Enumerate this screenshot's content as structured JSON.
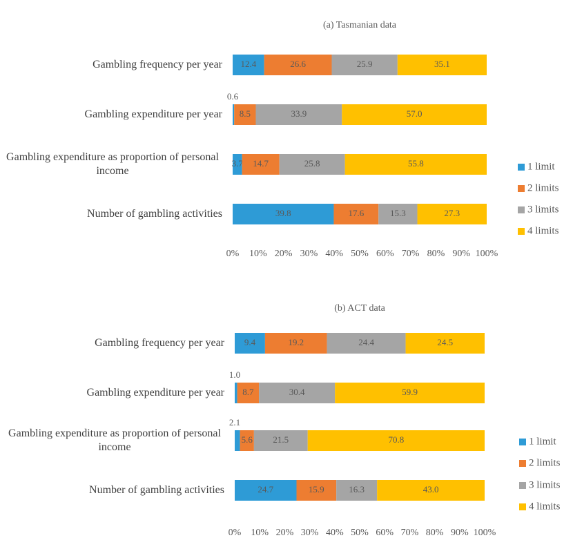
{
  "chart_data": [
    {
      "type": "percent_stacked_bar",
      "title": "(a) Tasmanian data",
      "categories": [
        "Gambling frequency per year",
        "Gambling expenditure per year",
        "Gambling expenditure as proportion of personal income",
        "Number of gambling activities"
      ],
      "series": [
        {
          "name": "1 limit",
          "color": "#2e9bd6",
          "values": [
            12.4,
            0.6,
            3.7,
            39.8
          ],
          "value_labels": [
            "12.4",
            "0.6",
            "3.7",
            "39.8"
          ]
        },
        {
          "name": "2 limits",
          "color": "#ed7d31",
          "values": [
            26.6,
            8.5,
            14.7,
            17.6
          ],
          "value_labels": [
            "26.6",
            "8.5",
            "14.7",
            "17.6"
          ]
        },
        {
          "name": "3 limits",
          "color": "#a5a5a5",
          "values": [
            25.9,
            33.9,
            25.8,
            15.3
          ],
          "value_labels": [
            "25.9",
            "33.9",
            "25.8",
            "15.3"
          ]
        },
        {
          "name": "4 limits",
          "color": "#ffc000",
          "values": [
            35.1,
            57.0,
            55.8,
            27.3
          ],
          "value_labels": [
            "35.1",
            "57.0",
            "55.8",
            "27.3"
          ]
        }
      ],
      "xlim": [
        0,
        100
      ],
      "xticks": [
        {
          "value": 0,
          "label": "0%"
        },
        {
          "value": 10,
          "label": "10%"
        },
        {
          "value": 20,
          "label": "20%"
        },
        {
          "value": 30,
          "label": "30%"
        },
        {
          "value": 40,
          "label": "40%"
        },
        {
          "value": 50,
          "label": "50%"
        },
        {
          "value": 60,
          "label": "60%"
        },
        {
          "value": 70,
          "label": "70%"
        },
        {
          "value": 80,
          "label": "80%"
        },
        {
          "value": 90,
          "label": "90%"
        },
        {
          "value": 100,
          "label": "100%"
        }
      ],
      "legend": "right"
    },
    {
      "type": "percent_stacked_bar",
      "title": "(b) ACT data",
      "categories": [
        "Gambling frequency per year",
        "Gambling expenditure per year",
        "Gambling expenditure as proportion of personal income",
        "Number of gambling activities"
      ],
      "series": [
        {
          "name": "1 limit",
          "color": "#2e9bd6",
          "values": [
            9.4,
            1.0,
            2.1,
            24.7
          ],
          "value_labels": [
            "9.4",
            "1.0",
            "2.1",
            "24.7"
          ]
        },
        {
          "name": "2 limits",
          "color": "#ed7d31",
          "values": [
            19.2,
            8.7,
            5.6,
            15.9
          ],
          "value_labels": [
            "19.2",
            "8.7",
            "5.6",
            "15.9"
          ]
        },
        {
          "name": "3 limits",
          "color": "#a5a5a5",
          "values": [
            24.4,
            30.4,
            21.5,
            16.3
          ],
          "value_labels": [
            "24.4",
            "30.4",
            "21.5",
            "16.3"
          ]
        },
        {
          "name": "4 limits",
          "color": "#ffc000",
          "values": [
            24.5,
            59.9,
            70.8,
            43.0
          ],
          "value_labels": [
            "24.5",
            "59.9",
            "70.8",
            "43.0"
          ]
        }
      ],
      "xlim": [
        0,
        100
      ],
      "xticks": [
        {
          "value": 0,
          "label": "0%"
        },
        {
          "value": 10,
          "label": "10%"
        },
        {
          "value": 20,
          "label": "20%"
        },
        {
          "value": 30,
          "label": "30%"
        },
        {
          "value": 40,
          "label": "40%"
        },
        {
          "value": 50,
          "label": "50%"
        },
        {
          "value": 60,
          "label": "60%"
        },
        {
          "value": 70,
          "label": "70%"
        },
        {
          "value": 80,
          "label": "80%"
        },
        {
          "value": 90,
          "label": "90%"
        },
        {
          "value": 100,
          "label": "100%"
        }
      ],
      "legend": "right"
    }
  ]
}
